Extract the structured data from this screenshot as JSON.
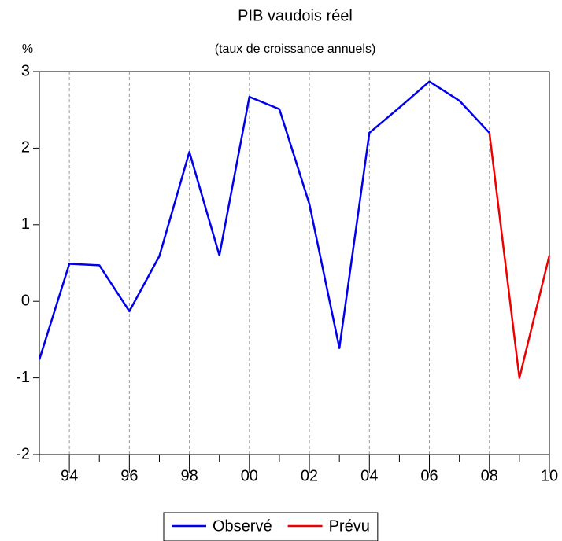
{
  "chart_data": {
    "type": "line",
    "title": "PIB vaudois réel",
    "subtitle": "(taux de croissance annuels)",
    "y_label": "%",
    "categories": [
      null,
      "94",
      null,
      "96",
      null,
      "98",
      null,
      "00",
      null,
      "02",
      null,
      "04",
      null,
      "06",
      null,
      "08",
      null,
      "10"
    ],
    "series": [
      {
        "name": "Observé",
        "color": "#0000ee",
        "values": [
          -0.76,
          0.49,
          0.47,
          -0.13,
          0.59,
          1.95,
          0.6,
          2.67,
          2.51,
          1.27,
          -0.61,
          2.2,
          2.53,
          2.87,
          2.62,
          2.2,
          null,
          null
        ]
      },
      {
        "name": "Prévu",
        "color": "#ee0000",
        "values": [
          null,
          null,
          null,
          null,
          null,
          null,
          null,
          null,
          null,
          null,
          null,
          null,
          null,
          null,
          null,
          2.2,
          -1.0,
          0.6
        ]
      }
    ],
    "ylim": [
      -2,
      3
    ],
    "yticks": [
      -2,
      -1,
      0,
      1,
      2,
      3
    ],
    "grid": true,
    "legend": "bottom"
  }
}
